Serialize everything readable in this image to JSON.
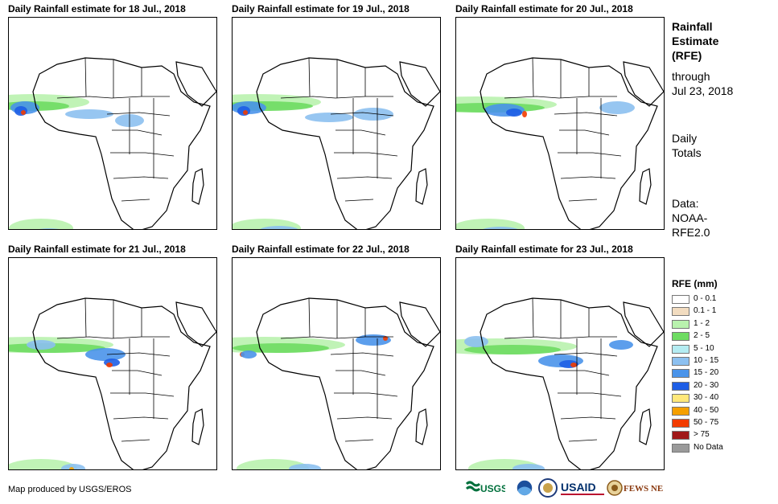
{
  "panels": [
    {
      "title": "Daily Rainfall estimate for 18 Jul., 2018"
    },
    {
      "title": "Daily Rainfall estimate for 19 Jul., 2018"
    },
    {
      "title": "Daily Rainfall estimate for 20 Jul., 2018"
    },
    {
      "title": "Daily Rainfall estimate for 21 Jul., 2018"
    },
    {
      "title": "Daily Rainfall estimate for 22 Jul., 2018"
    },
    {
      "title": "Daily Rainfall estimate for 23 Jul., 2018"
    }
  ],
  "side": {
    "heading": [
      "Rainfall",
      "Estimate",
      "(RFE)"
    ],
    "through": [
      "through",
      "Jul 23, 2018"
    ],
    "totals": [
      "Daily",
      "Totals"
    ],
    "data": [
      "Data:",
      "NOAA-",
      "RFE2.0"
    ]
  },
  "legend": {
    "title": "RFE (mm)",
    "items": [
      {
        "label": "0 - 0.1",
        "color": "#ffffff"
      },
      {
        "label": "0.1 - 1",
        "color": "#f2dcc0"
      },
      {
        "label": "1 - 2",
        "color": "#b9f2ae"
      },
      {
        "label": "2 - 5",
        "color": "#6edc62"
      },
      {
        "label": "5 - 10",
        "color": "#b4ecf2"
      },
      {
        "label": "10 - 15",
        "color": "#8cc0f0"
      },
      {
        "label": "15 - 20",
        "color": "#4a94ea"
      },
      {
        "label": "20 - 30",
        "color": "#1e5ee6"
      },
      {
        "label": "30 - 40",
        "color": "#ffe87a"
      },
      {
        "label": "40 - 50",
        "color": "#f5a000"
      },
      {
        "label": "50 - 75",
        "color": "#f23c00"
      },
      {
        "label": "> 75",
        "color": "#a01818"
      },
      {
        "label": "No Data",
        "color": "#9a9a9a"
      }
    ]
  },
  "credit": "Map produced by USGS/EROS",
  "logos": {
    "usgs": "USGS",
    "usaid": "USAID",
    "fewsnet": "FEWS NET"
  }
}
